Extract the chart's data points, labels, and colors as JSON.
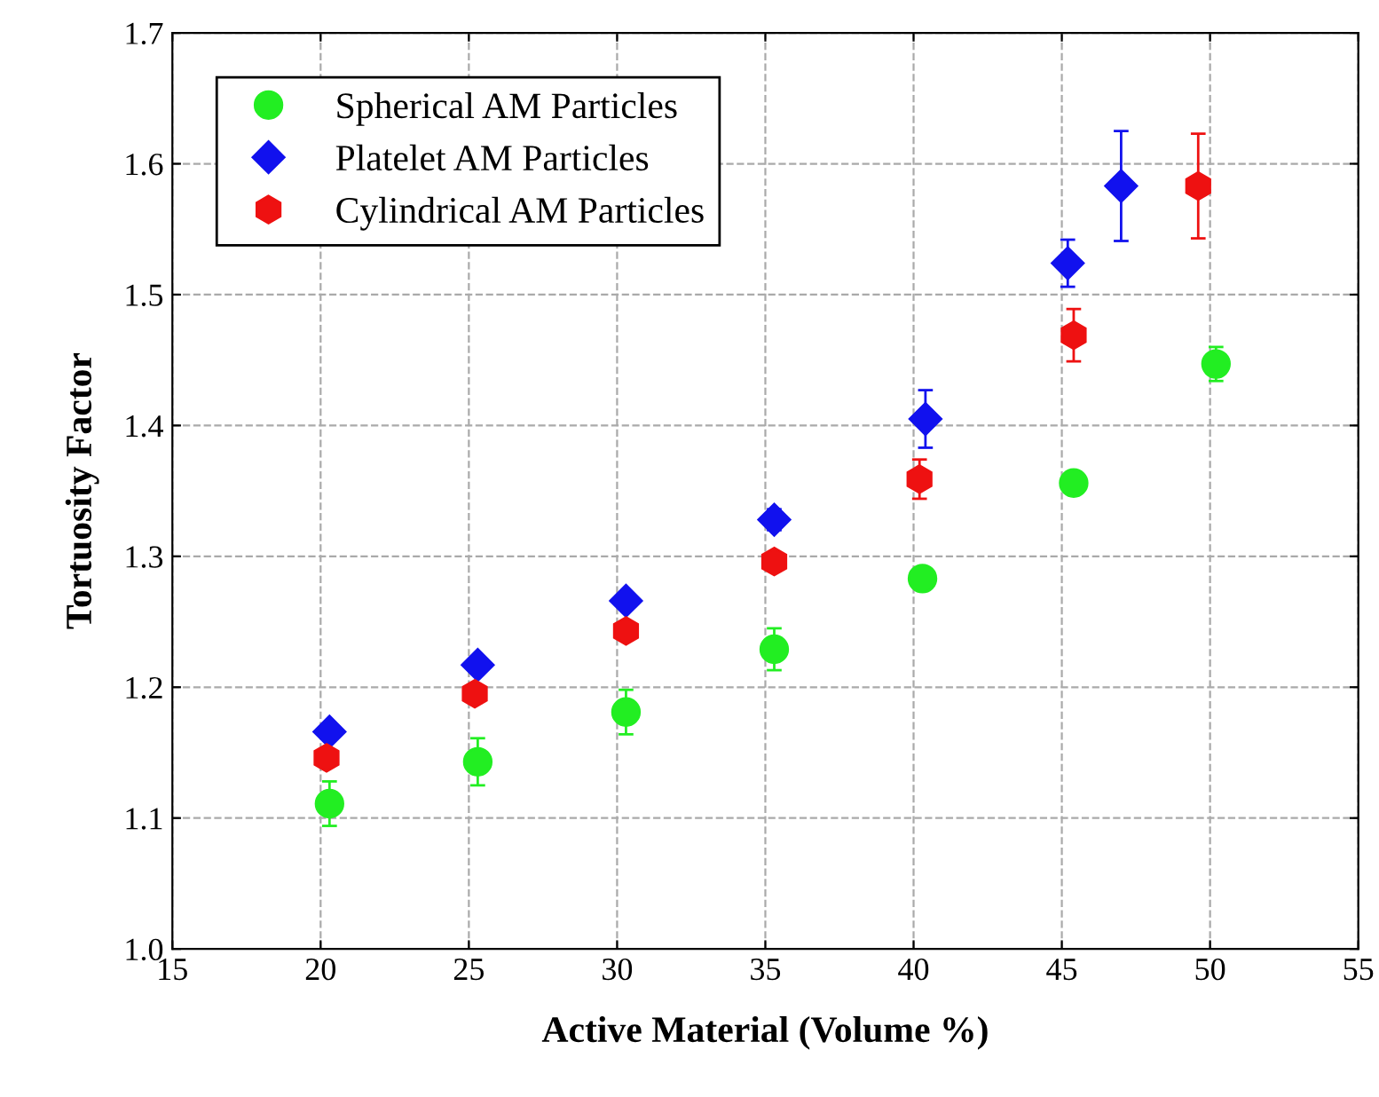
{
  "chart_data": {
    "type": "scatter",
    "xlabel": "Active Material (Volume %)",
    "ylabel": "Tortuosity Factor",
    "xlim": [
      15,
      55
    ],
    "xticks": [
      15,
      20,
      25,
      30,
      35,
      40,
      45,
      50,
      55
    ],
    "ylim": [
      1.0,
      1.7
    ],
    "yticks": [
      {
        "value": 1.0,
        "label": "1.0"
      },
      1.1,
      1.2,
      1.3,
      1.4,
      1.5,
      1.6,
      1.7
    ],
    "grid": true,
    "legend": "top left",
    "series": [
      {
        "name": "Spherical AM Particles",
        "color": "#22ee22",
        "marker": "circle",
        "x": [
          20.3,
          25.3,
          30.3,
          35.3,
          40.3,
          45.4,
          50.2
        ],
        "values": [
          1.111,
          1.143,
          1.181,
          1.229,
          1.283,
          1.356,
          1.447
        ],
        "errors": [
          0.017,
          0.018,
          0.017,
          0.016,
          0.006,
          0.005,
          0.013
        ]
      },
      {
        "name": "Platelet AM Particles",
        "color": "#1111ee",
        "marker": "diamond",
        "x": [
          20.3,
          25.3,
          30.3,
          35.3,
          40.4,
          45.2,
          47.0
        ],
        "values": [
          1.166,
          1.217,
          1.266,
          1.328,
          1.405,
          1.524,
          1.583
        ],
        "errors": [
          0.006,
          0.006,
          0.006,
          0.008,
          0.022,
          0.018,
          0.042
        ]
      },
      {
        "name": "Cylindrical AM Particles",
        "color": "#ee1111",
        "x": [
          20.2,
          25.2,
          30.3,
          35.3,
          40.2,
          45.4,
          49.6
        ],
        "values": [
          1.146,
          1.195,
          1.243,
          1.296,
          1.359,
          1.469,
          1.583
        ],
        "errors": [
          0.007,
          0.007,
          0.007,
          0.007,
          0.015,
          0.02,
          0.04
        ]
      }
    ]
  }
}
